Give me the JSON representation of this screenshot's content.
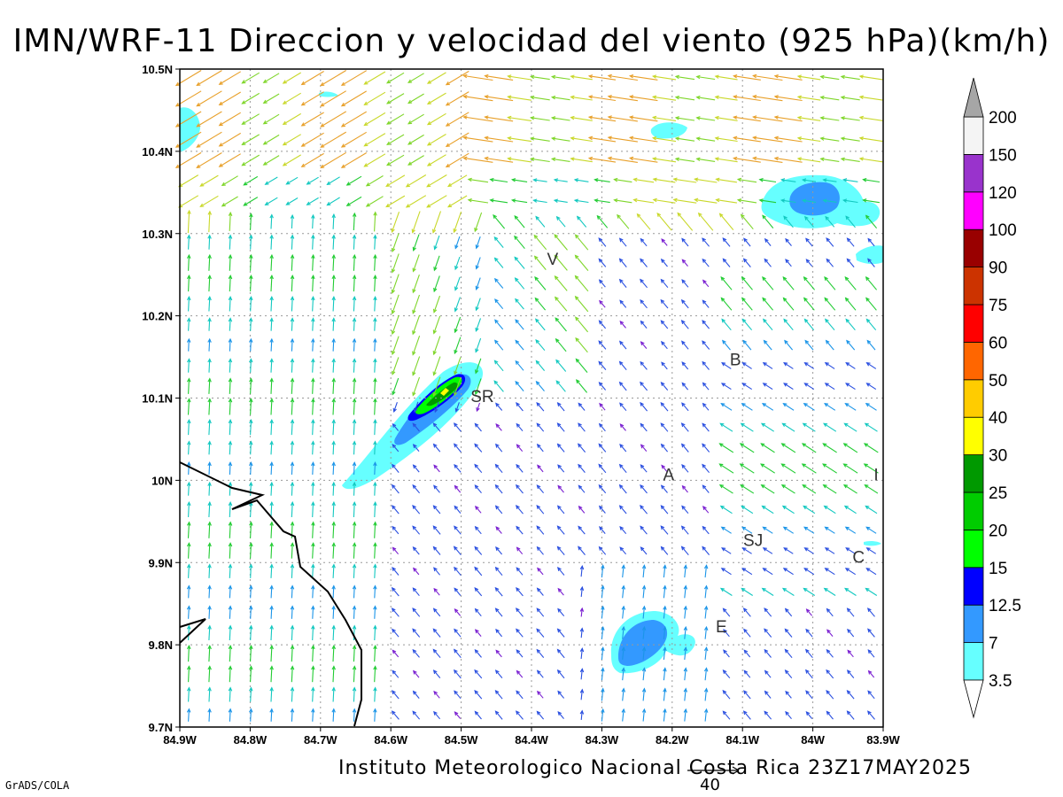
{
  "title": "IMN/WRF-11 Direccion y velocidad del viento (925 hPa)(km/h)",
  "footer": "Instituto Meteorologico Nacional Costa Rica 23Z17MAY2025",
  "credit": "GrADS/COLA",
  "reference_vector_label": "40",
  "map": {
    "lat_ticks": [
      "10.5N",
      "10.4N",
      "10.3N",
      "10.2N",
      "10.1N",
      "10N",
      "9.9N",
      "9.8N",
      "9.7N"
    ],
    "lon_ticks": [
      "84.9W",
      "84.8W",
      "84.7W",
      "84.6W",
      "84.5W",
      "84.4W",
      "84.3W",
      "84.2W",
      "84.1W",
      "84W",
      "83.9W"
    ],
    "grid": true,
    "places": [
      {
        "label": "V",
        "lon": -84.37,
        "lat": 10.262
      },
      {
        "label": "B",
        "lon": -84.11,
        "lat": 10.14
      },
      {
        "label": "SR",
        "lon": -84.47,
        "lat": 10.095
      },
      {
        "label": "A",
        "lon": -84.205,
        "lat": 10.0
      },
      {
        "label": "I",
        "lon": -83.91,
        "lat": 10.0
      },
      {
        "label": "SJ",
        "lon": -84.085,
        "lat": 9.92
      },
      {
        "label": "C",
        "lon": -83.935,
        "lat": 9.9
      },
      {
        "label": "E",
        "lon": -84.13,
        "lat": 9.815
      }
    ]
  },
  "colorbar": {
    "levels": [
      "3.5",
      "7",
      "12.5",
      "15",
      "20",
      "25",
      "30",
      "40",
      "50",
      "60",
      "75",
      "90",
      "100",
      "120",
      "150",
      "200"
    ],
    "colors": [
      "#66ffff",
      "#3399ff",
      "#0000ff",
      "#00ff00",
      "#00cc00",
      "#009900",
      "#ffff00",
      "#ffcc00",
      "#ff6600",
      "#ff0000",
      "#cc3300",
      "#990000",
      "#ff00ff",
      "#9933cc",
      "#f4f4f4",
      "#a6a6a6"
    ]
  }
}
